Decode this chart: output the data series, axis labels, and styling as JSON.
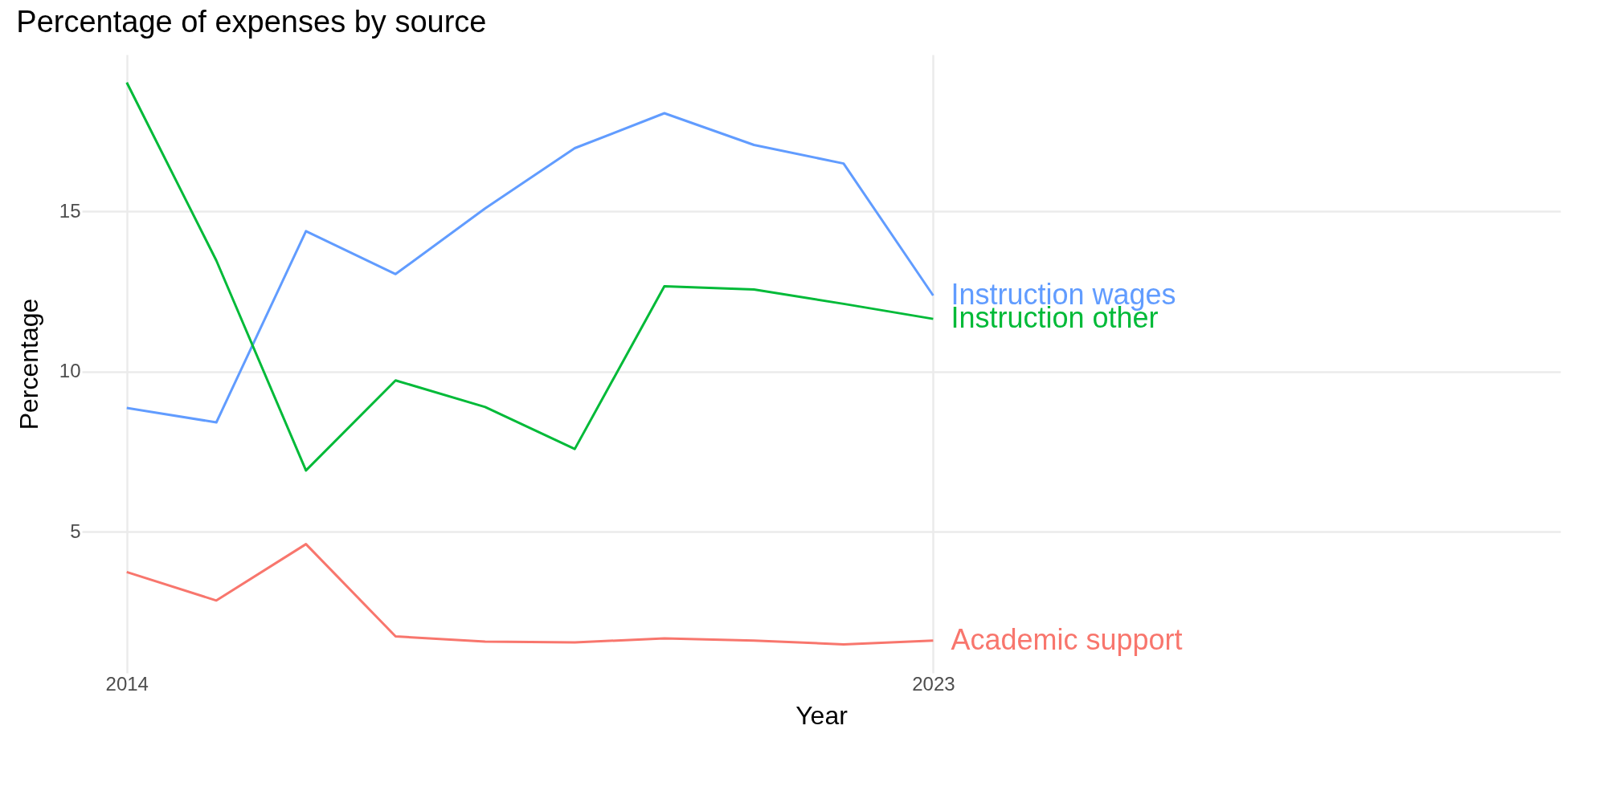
{
  "chart_data": {
    "type": "line",
    "title": "Percentage of expenses by source",
    "xlabel": "Year",
    "ylabel": "Percentage",
    "x": [
      2014,
      2015,
      2016,
      2017,
      2018,
      2019,
      2020,
      2021,
      2022,
      2023
    ],
    "xlim": [
      2013.5,
      2030
    ],
    "xticks": [
      2014,
      2023
    ],
    "ylim": [
      0.6,
      19.9
    ],
    "yticks": [
      5,
      10,
      15
    ],
    "grid": true,
    "legend": false,
    "series": [
      {
        "name": "Instruction wages",
        "color": "#619cff",
        "values": [
          8.87,
          8.42,
          14.39,
          13.05,
          15.1,
          16.98,
          18.07,
          17.08,
          16.5,
          12.38
        ]
      },
      {
        "name": "Instruction other",
        "color": "#00ba38",
        "values": [
          19.03,
          13.47,
          6.92,
          9.73,
          8.9,
          7.59,
          12.67,
          12.57,
          12.12,
          11.65
        ]
      },
      {
        "name": "Academic support",
        "color": "#f8766d",
        "values": [
          3.75,
          2.86,
          4.62,
          1.74,
          1.58,
          1.55,
          1.68,
          1.61,
          1.49,
          1.61
        ]
      }
    ]
  }
}
